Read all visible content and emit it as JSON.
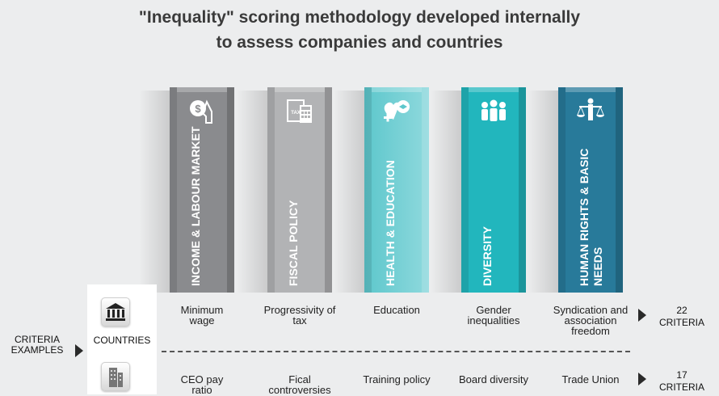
{
  "title": {
    "line1": "\"Inequality\" scoring methodology developed internally",
    "line2": "to assess companies and countries"
  },
  "pillars": [
    {
      "label": "INCOME & LABOUR MARKET",
      "icon": "money-hand-icon",
      "color": "#8a8b8e"
    },
    {
      "label": "FISCAL POLICY",
      "icon": "tax-calculator-icon",
      "color": "#b2b3b5"
    },
    {
      "label": "HEALTH & EDUCATION",
      "icon": "health-education-icon",
      "color": "#5dc7cc"
    },
    {
      "label": "DIVERSITY",
      "icon": "people-group-icon",
      "color": "#22b6bd"
    },
    {
      "label": "HUMAN RIGHTS & BASIC NEEDS",
      "icon": "justice-scales-icon",
      "color": "#287a9a"
    }
  ],
  "criteria_label": "CRITERIA EXAMPLES",
  "countries": {
    "label": "COUNTRIES",
    "icon": "government-building-icon",
    "items": [
      "Minimum wage",
      "Progressivity of tax",
      "Education",
      "Gender inequalities",
      "Syndication and association freedom"
    ],
    "count": "22",
    "count_label": "CRITERIA"
  },
  "companies": {
    "icon": "office-building-icon",
    "items": [
      "CEO pay ratio",
      "Fical controversies",
      "Training policy",
      "Board diversity",
      "Trade Union"
    ],
    "count": "17",
    "count_label": "CRITERIA"
  }
}
